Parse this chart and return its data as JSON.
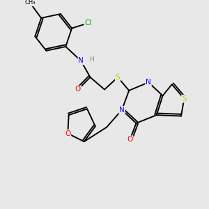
{
  "background_color": "#e8e8e8",
  "bond_color": "#000000",
  "atom_colors": {
    "N": "#0000ff",
    "O": "#ff0000",
    "S": "#cccc00",
    "Cl": "#00aa00",
    "C": "#000000",
    "H": "#808080"
  }
}
